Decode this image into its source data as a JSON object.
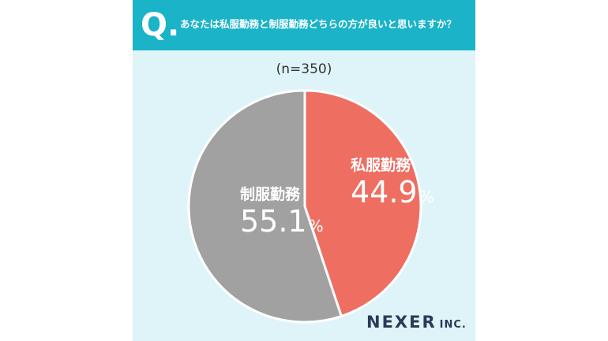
{
  "question": {
    "mark": "Q.",
    "text": "あなたは私服勤務と制服勤務どちらの方が良いと思いますか？"
  },
  "sample_size": "(n=350)",
  "brand": {
    "name": "NEXER",
    "suffix": "INC."
  },
  "colors": {
    "header": "#1ab3c7",
    "background": "#dff4f8",
    "slice_private": "#ee6e62",
    "slice_uniform": "#a1a1a1"
  },
  "chart_data": {
    "type": "pie",
    "slices": [
      {
        "label": "私服勤務",
        "value": 44.9,
        "display": "44.9",
        "unit": "%",
        "color": "#ee6e62"
      },
      {
        "label": "制服勤務",
        "value": 55.1,
        "display": "55.1",
        "unit": "%",
        "color": "#a1a1a1"
      }
    ]
  }
}
